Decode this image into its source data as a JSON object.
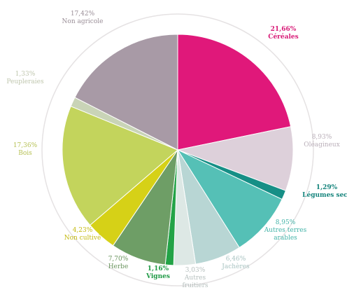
{
  "chart_data": {
    "type": "pie",
    "slices": [
      {
        "label": "Céréales",
        "percent": "21,66%",
        "value": 21.66,
        "color": "#e0187a",
        "label_color": "#d81b77",
        "bold": true
      },
      {
        "label": "Oléagineux",
        "percent": "8,93%",
        "value": 8.93,
        "color": "#ddd0da",
        "label_color": "#b9aeb8",
        "bold": false
      },
      {
        "label": "Légumes secs",
        "percent": "1,29%",
        "value": 1.29,
        "color": "#168f86",
        "label_color": "#15847c",
        "bold": true
      },
      {
        "label": "Autres terres arables",
        "percent": "8,95%",
        "value": 8.95,
        "color": "#55c0b6",
        "label_color": "#43b3a8",
        "bold": false
      },
      {
        "label": "Jachères",
        "percent": "6,46%",
        "value": 6.46,
        "color": "#b8d6d4",
        "label_color": "#a8c3c1",
        "bold": false
      },
      {
        "label": "Autres fruitiers",
        "percent": "3,03%",
        "value": 3.03,
        "color": "#dde8e5",
        "label_color": "#b5bfbd",
        "bold": false
      },
      {
        "label": "Vignes",
        "percent": "1,16%",
        "value": 1.16,
        "color": "#23a347",
        "label_color": "#1f9a45",
        "bold": true
      },
      {
        "label": "Herbe",
        "percent": "7,70%",
        "value": 7.7,
        "color": "#6e9e66",
        "label_color": "#6b955f",
        "bold": false
      },
      {
        "label": "Non cultivé",
        "percent": "4,23%",
        "value": 4.23,
        "color": "#d6d117",
        "label_color": "#c3b90e",
        "bold": false
      },
      {
        "label": "Bois",
        "percent": "17,36%",
        "value": 17.36,
        "color": "#c3d45c",
        "label_color": "#b6c154",
        "bold": false
      },
      {
        "label": "Peupleraies",
        "percent": "1,33%",
        "value": 1.33,
        "color": "#c9d4b7",
        "label_color": "#bfc6ad",
        "bold": false
      },
      {
        "label": "Non agricole",
        "percent": "17,42%",
        "value": 17.42,
        "color": "#a89aa6",
        "label_color": "#9a8e97",
        "bold": false
      }
    ]
  }
}
